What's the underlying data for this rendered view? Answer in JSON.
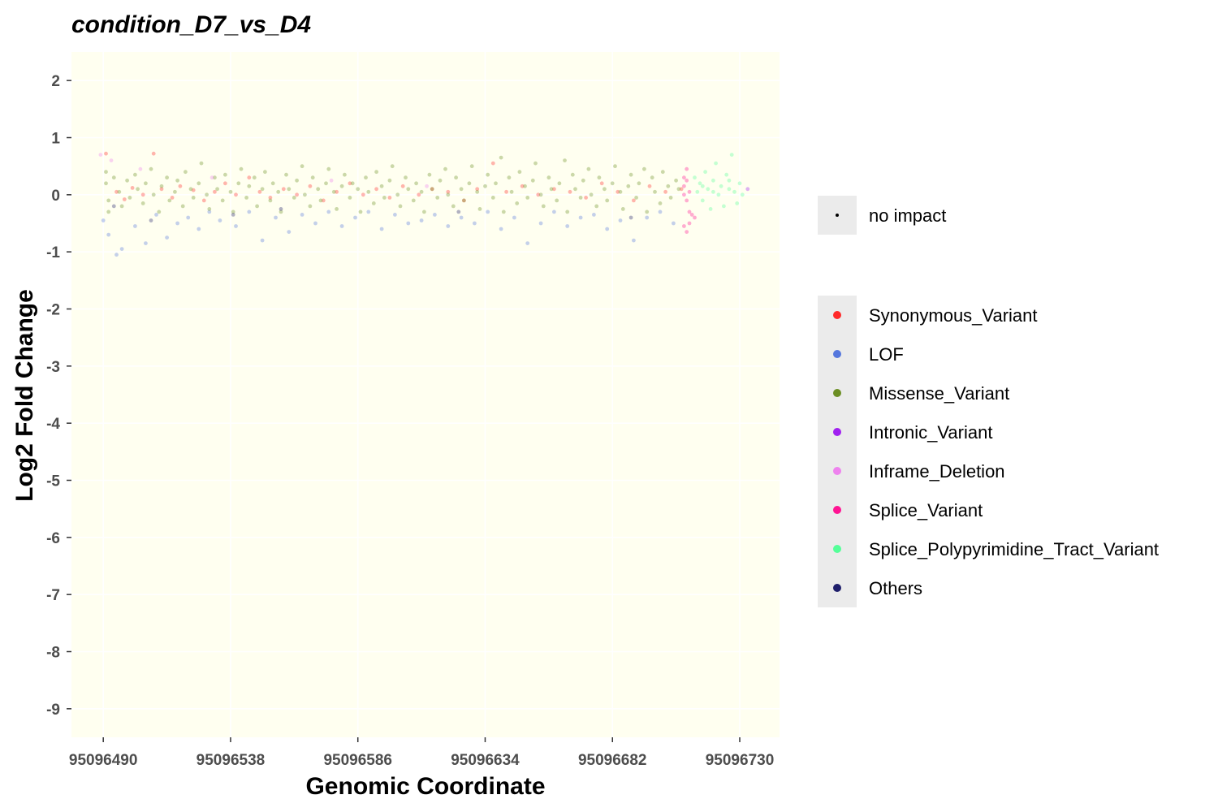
{
  "chart_data": {
    "type": "scatter",
    "title": "condition_D7_vs_D4",
    "xlabel": "Genomic Coordinate",
    "ylabel": "Log2 Fold Change",
    "xlim": [
      95096478,
      95096745
    ],
    "ylim": [
      -9.5,
      2.5
    ],
    "x_ticks": [
      95096490,
      95096538,
      95096586,
      95096634,
      95096682,
      95096730
    ],
    "y_ticks": [
      2,
      1,
      0,
      -1,
      -2,
      -3,
      -4,
      -5,
      -6,
      -7,
      -8,
      -9
    ],
    "panel_background": "#fffff0",
    "grid": true,
    "grid_color": "#ffffff",
    "legend_position": "right",
    "size_legend": [
      {
        "label": "no impact"
      }
    ],
    "series": [
      {
        "name": "Synonymous_Variant",
        "color": "#ff2a2a",
        "points": [
          [
            95096491,
            0.72
          ],
          [
            95096495,
            0.05
          ],
          [
            95096498,
            -0.08
          ],
          [
            95096501,
            0.12
          ],
          [
            95096505,
            0.0
          ],
          [
            95096509,
            0.72
          ],
          [
            95096512,
            0.1
          ],
          [
            95096516,
            -0.05
          ],
          [
            95096519,
            0.15
          ],
          [
            95096524,
            0.08
          ],
          [
            95096528,
            -0.1
          ],
          [
            95096532,
            0.05
          ],
          [
            95096536,
            0.2
          ],
          [
            95096540,
            0.0
          ],
          [
            95096545,
            0.3
          ],
          [
            95096549,
            0.05
          ],
          [
            95096553,
            -0.05
          ],
          [
            95096558,
            0.1
          ],
          [
            95096563,
            0.0
          ],
          [
            95096568,
            0.15
          ],
          [
            95096573,
            -0.1
          ],
          [
            95096578,
            0.05
          ],
          [
            95096583,
            0.2
          ],
          [
            95096588,
            0.0
          ],
          [
            95096593,
            0.1
          ],
          [
            95096598,
            -0.05
          ],
          [
            95096603,
            0.15
          ],
          [
            95096609,
            0.0
          ],
          [
            95096614,
            0.1
          ],
          [
            95096620,
            0.05
          ],
          [
            95096626,
            -0.1
          ],
          [
            95096631,
            0.1
          ],
          [
            95096637,
            0.55
          ],
          [
            95096642,
            0.05
          ],
          [
            95096648,
            0.15
          ],
          [
            95096654,
            0.0
          ],
          [
            95096660,
            0.1
          ],
          [
            95096666,
            0.05
          ],
          [
            95096672,
            -0.05
          ],
          [
            95096678,
            0.2
          ],
          [
            95096684,
            0.05
          ],
          [
            95096690,
            -0.1
          ],
          [
            95096696,
            0.15
          ],
          [
            95096702,
            0.05
          ],
          [
            95096708,
            0.1
          ]
        ]
      },
      {
        "name": "LOF",
        "color": "#5577dd",
        "points": [
          [
            95096490,
            -0.45
          ],
          [
            95096492,
            -0.7
          ],
          [
            95096495,
            -1.05
          ],
          [
            95096497,
            -0.95
          ],
          [
            95096502,
            -0.55
          ],
          [
            95096506,
            -0.85
          ],
          [
            95096510,
            -0.35
          ],
          [
            95096514,
            -0.75
          ],
          [
            95096518,
            -0.5
          ],
          [
            95096522,
            -0.4
          ],
          [
            95096526,
            -0.6
          ],
          [
            95096530,
            -0.3
          ],
          [
            95096534,
            -0.45
          ],
          [
            95096540,
            -0.55
          ],
          [
            95096545,
            -0.3
          ],
          [
            95096550,
            -0.8
          ],
          [
            95096555,
            -0.4
          ],
          [
            95096560,
            -0.65
          ],
          [
            95096565,
            -0.35
          ],
          [
            95096570,
            -0.5
          ],
          [
            95096575,
            -0.3
          ],
          [
            95096580,
            -0.55
          ],
          [
            95096585,
            -0.4
          ],
          [
            95096590,
            -0.3
          ],
          [
            95096595,
            -0.6
          ],
          [
            95096600,
            -0.35
          ],
          [
            95096605,
            -0.5
          ],
          [
            95096610,
            -0.45
          ],
          [
            95096615,
            -0.35
          ],
          [
            95096620,
            -0.55
          ],
          [
            95096625,
            -0.4
          ],
          [
            95096630,
            -0.5
          ],
          [
            95096635,
            -0.3
          ],
          [
            95096640,
            -0.6
          ],
          [
            95096645,
            -0.4
          ],
          [
            95096650,
            -0.85
          ],
          [
            95096655,
            -0.5
          ],
          [
            95096660,
            -0.3
          ],
          [
            95096665,
            -0.55
          ],
          [
            95096670,
            -0.4
          ],
          [
            95096675,
            -0.35
          ],
          [
            95096680,
            -0.6
          ],
          [
            95096685,
            -0.45
          ],
          [
            95096690,
            -0.8
          ],
          [
            95096695,
            -0.4
          ],
          [
            95096700,
            -0.3
          ],
          [
            95096705,
            -0.5
          ]
        ]
      },
      {
        "name": "Missense_Variant",
        "color": "#6b8e23",
        "points": [
          [
            95096491,
            0.4
          ],
          [
            95096491,
            0.2
          ],
          [
            95096492,
            -0.1
          ],
          [
            95096492,
            -0.3
          ],
          [
            95096494,
            0.3
          ],
          [
            95096496,
            0.05
          ],
          [
            95096497,
            -0.2
          ],
          [
            95096499,
            0.25
          ],
          [
            95096500,
            -0.05
          ],
          [
            95096502,
            0.35
          ],
          [
            95096503,
            0.1
          ],
          [
            95096505,
            -0.15
          ],
          [
            95096506,
            0.2
          ],
          [
            95096508,
            0.45
          ],
          [
            95096509,
            0.0
          ],
          [
            95096511,
            -0.3
          ],
          [
            95096512,
            0.15
          ],
          [
            95096514,
            0.3
          ],
          [
            95096515,
            -0.1
          ],
          [
            95096517,
            0.05
          ],
          [
            95096518,
            0.25
          ],
          [
            95096520,
            -0.2
          ],
          [
            95096521,
            0.4
          ],
          [
            95096523,
            0.1
          ],
          [
            95096524,
            -0.05
          ],
          [
            95096526,
            0.2
          ],
          [
            95096527,
            0.55
          ],
          [
            95096529,
            0.0
          ],
          [
            95096530,
            -0.25
          ],
          [
            95096532,
            0.3
          ],
          [
            95096533,
            0.1
          ],
          [
            95096535,
            -0.1
          ],
          [
            95096536,
            0.35
          ],
          [
            95096538,
            0.05
          ],
          [
            95096539,
            -0.3
          ],
          [
            95096541,
            0.2
          ],
          [
            95096542,
            0.45
          ],
          [
            95096544,
            -0.05
          ],
          [
            95096545,
            0.15
          ],
          [
            95096547,
            0.3
          ],
          [
            95096548,
            -0.2
          ],
          [
            95096550,
            0.1
          ],
          [
            95096551,
            0.4
          ],
          [
            95096553,
            -0.1
          ],
          [
            95096554,
            0.2
          ],
          [
            95096556,
            0.05
          ],
          [
            95096557,
            -0.3
          ],
          [
            95096559,
            0.35
          ],
          [
            95096560,
            0.1
          ],
          [
            95096562,
            -0.05
          ],
          [
            95096563,
            0.25
          ],
          [
            95096565,
            0.5
          ],
          [
            95096566,
            0.0
          ],
          [
            95096568,
            -0.2
          ],
          [
            95096569,
            0.3
          ],
          [
            95096571,
            0.1
          ],
          [
            95096572,
            -0.1
          ],
          [
            95096574,
            0.2
          ],
          [
            95096575,
            0.45
          ],
          [
            95096577,
            0.05
          ],
          [
            95096578,
            -0.25
          ],
          [
            95096580,
            0.15
          ],
          [
            95096581,
            0.35
          ],
          [
            95096583,
            -0.05
          ],
          [
            95096584,
            0.2
          ],
          [
            95096586,
            0.1
          ],
          [
            95096587,
            -0.3
          ],
          [
            95096589,
            0.3
          ],
          [
            95096590,
            0.05
          ],
          [
            95096592,
            -0.15
          ],
          [
            95096593,
            0.4
          ],
          [
            95096595,
            0.15
          ],
          [
            95096596,
            -0.05
          ],
          [
            95096598,
            0.25
          ],
          [
            95096599,
            0.5
          ],
          [
            95096601,
            0.0
          ],
          [
            95096602,
            -0.2
          ],
          [
            95096604,
            0.3
          ],
          [
            95096605,
            0.1
          ],
          [
            95096607,
            -0.1
          ],
          [
            95096608,
            0.2
          ],
          [
            95096610,
            0.05
          ],
          [
            95096611,
            -0.3
          ],
          [
            95096613,
            0.35
          ],
          [
            95096614,
            0.1
          ],
          [
            95096616,
            -0.05
          ],
          [
            95096617,
            0.25
          ],
          [
            95096619,
            0.45
          ],
          [
            95096620,
            0.0
          ],
          [
            95096622,
            -0.2
          ],
          [
            95096623,
            0.3
          ],
          [
            95096625,
            0.1
          ],
          [
            95096626,
            -0.1
          ],
          [
            95096628,
            0.2
          ],
          [
            95096629,
            0.5
          ],
          [
            95096631,
            0.05
          ],
          [
            95096632,
            -0.25
          ],
          [
            95096634,
            0.15
          ],
          [
            95096635,
            0.35
          ],
          [
            95096637,
            -0.05
          ],
          [
            95096638,
            0.2
          ],
          [
            95096640,
            0.65
          ],
          [
            95096641,
            -0.3
          ],
          [
            95096643,
            0.3
          ],
          [
            95096644,
            0.05
          ],
          [
            95096646,
            -0.15
          ],
          [
            95096647,
            0.4
          ],
          [
            95096649,
            0.15
          ],
          [
            95096650,
            -0.05
          ],
          [
            95096652,
            0.25
          ],
          [
            95096653,
            0.55
          ],
          [
            95096655,
            0.0
          ],
          [
            95096656,
            -0.2
          ],
          [
            95096658,
            0.3
          ],
          [
            95096659,
            0.1
          ],
          [
            95096661,
            -0.1
          ],
          [
            95096662,
            0.2
          ],
          [
            95096664,
            0.6
          ],
          [
            95096665,
            -0.3
          ],
          [
            95096667,
            0.35
          ],
          [
            95096668,
            0.1
          ],
          [
            95096670,
            -0.05
          ],
          [
            95096671,
            0.25
          ],
          [
            95096673,
            0.45
          ],
          [
            95096674,
            0.0
          ],
          [
            95096676,
            -0.2
          ],
          [
            95096677,
            0.3
          ],
          [
            95096679,
            0.1
          ],
          [
            95096680,
            -0.1
          ],
          [
            95096682,
            0.2
          ],
          [
            95096683,
            0.5
          ],
          [
            95096685,
            0.05
          ],
          [
            95096686,
            -0.25
          ],
          [
            95096688,
            0.15
          ],
          [
            95096689,
            0.35
          ],
          [
            95096691,
            -0.05
          ],
          [
            95096692,
            0.2
          ],
          [
            95096694,
            0.45
          ],
          [
            95096695,
            -0.3
          ],
          [
            95096697,
            0.3
          ],
          [
            95096698,
            0.05
          ],
          [
            95096700,
            -0.15
          ],
          [
            95096701,
            0.4
          ],
          [
            95096703,
            0.15
          ],
          [
            95096704,
            -0.05
          ],
          [
            95096706,
            0.25
          ],
          [
            95096707,
            0.1
          ]
        ]
      },
      {
        "name": "Intronic_Variant",
        "color": "#a020f0",
        "points": [
          [
            95096733,
            0.1
          ]
        ]
      },
      {
        "name": "Inframe_Deletion",
        "color": "#ee82ee",
        "points": [
          [
            95096489,
            0.7
          ],
          [
            95096493,
            0.6
          ],
          [
            95096504,
            0.45
          ],
          [
            95096531,
            0.3
          ],
          [
            95096576,
            0.25
          ],
          [
            95096612,
            0.15
          ]
        ]
      },
      {
        "name": "Splice_Variant",
        "color": "#ff1493",
        "points": [
          [
            95096709,
            0.3
          ],
          [
            95096709,
            0.15
          ],
          [
            95096709,
            0.0
          ],
          [
            95096710,
            -0.1
          ],
          [
            95096710,
            0.45
          ],
          [
            95096710,
            0.25
          ],
          [
            95096711,
            -0.3
          ],
          [
            95096711,
            0.05
          ],
          [
            95096709,
            -0.55
          ],
          [
            95096710,
            -0.65
          ],
          [
            95096711,
            -0.5
          ],
          [
            95096712,
            -0.35
          ],
          [
            95096713,
            -0.4
          ]
        ]
      },
      {
        "name": "Splice_Polypyrimidine_Tract_Variant",
        "color": "#55ff99",
        "points": [
          [
            95096713,
            0.3
          ],
          [
            95096714,
            0.05
          ],
          [
            95096715,
            0.2
          ],
          [
            95096716,
            -0.1
          ],
          [
            95096717,
            0.4
          ],
          [
            95096718,
            0.1
          ],
          [
            95096719,
            -0.25
          ],
          [
            95096720,
            0.25
          ],
          [
            95096721,
            0.55
          ],
          [
            95096722,
            0.0
          ],
          [
            95096723,
            0.15
          ],
          [
            95096724,
            -0.2
          ],
          [
            95096725,
            0.35
          ],
          [
            95096726,
            0.1
          ],
          [
            95096727,
            0.7
          ],
          [
            95096728,
            0.05
          ],
          [
            95096729,
            -0.15
          ],
          [
            95096730,
            0.2
          ],
          [
            95096731,
            0.0
          ],
          [
            95096726,
            0.25
          ],
          [
            95096720,
            0.05
          ],
          [
            95096716,
            0.15
          ]
        ]
      },
      {
        "name": "Others",
        "color": "#1f1f6b",
        "points": [
          [
            95096494,
            -0.2
          ],
          [
            95096508,
            -0.45
          ],
          [
            95096539,
            -0.35
          ],
          [
            95096557,
            -0.25
          ],
          [
            95096624,
            -0.3
          ],
          [
            95096689,
            -0.4
          ]
        ]
      }
    ]
  }
}
